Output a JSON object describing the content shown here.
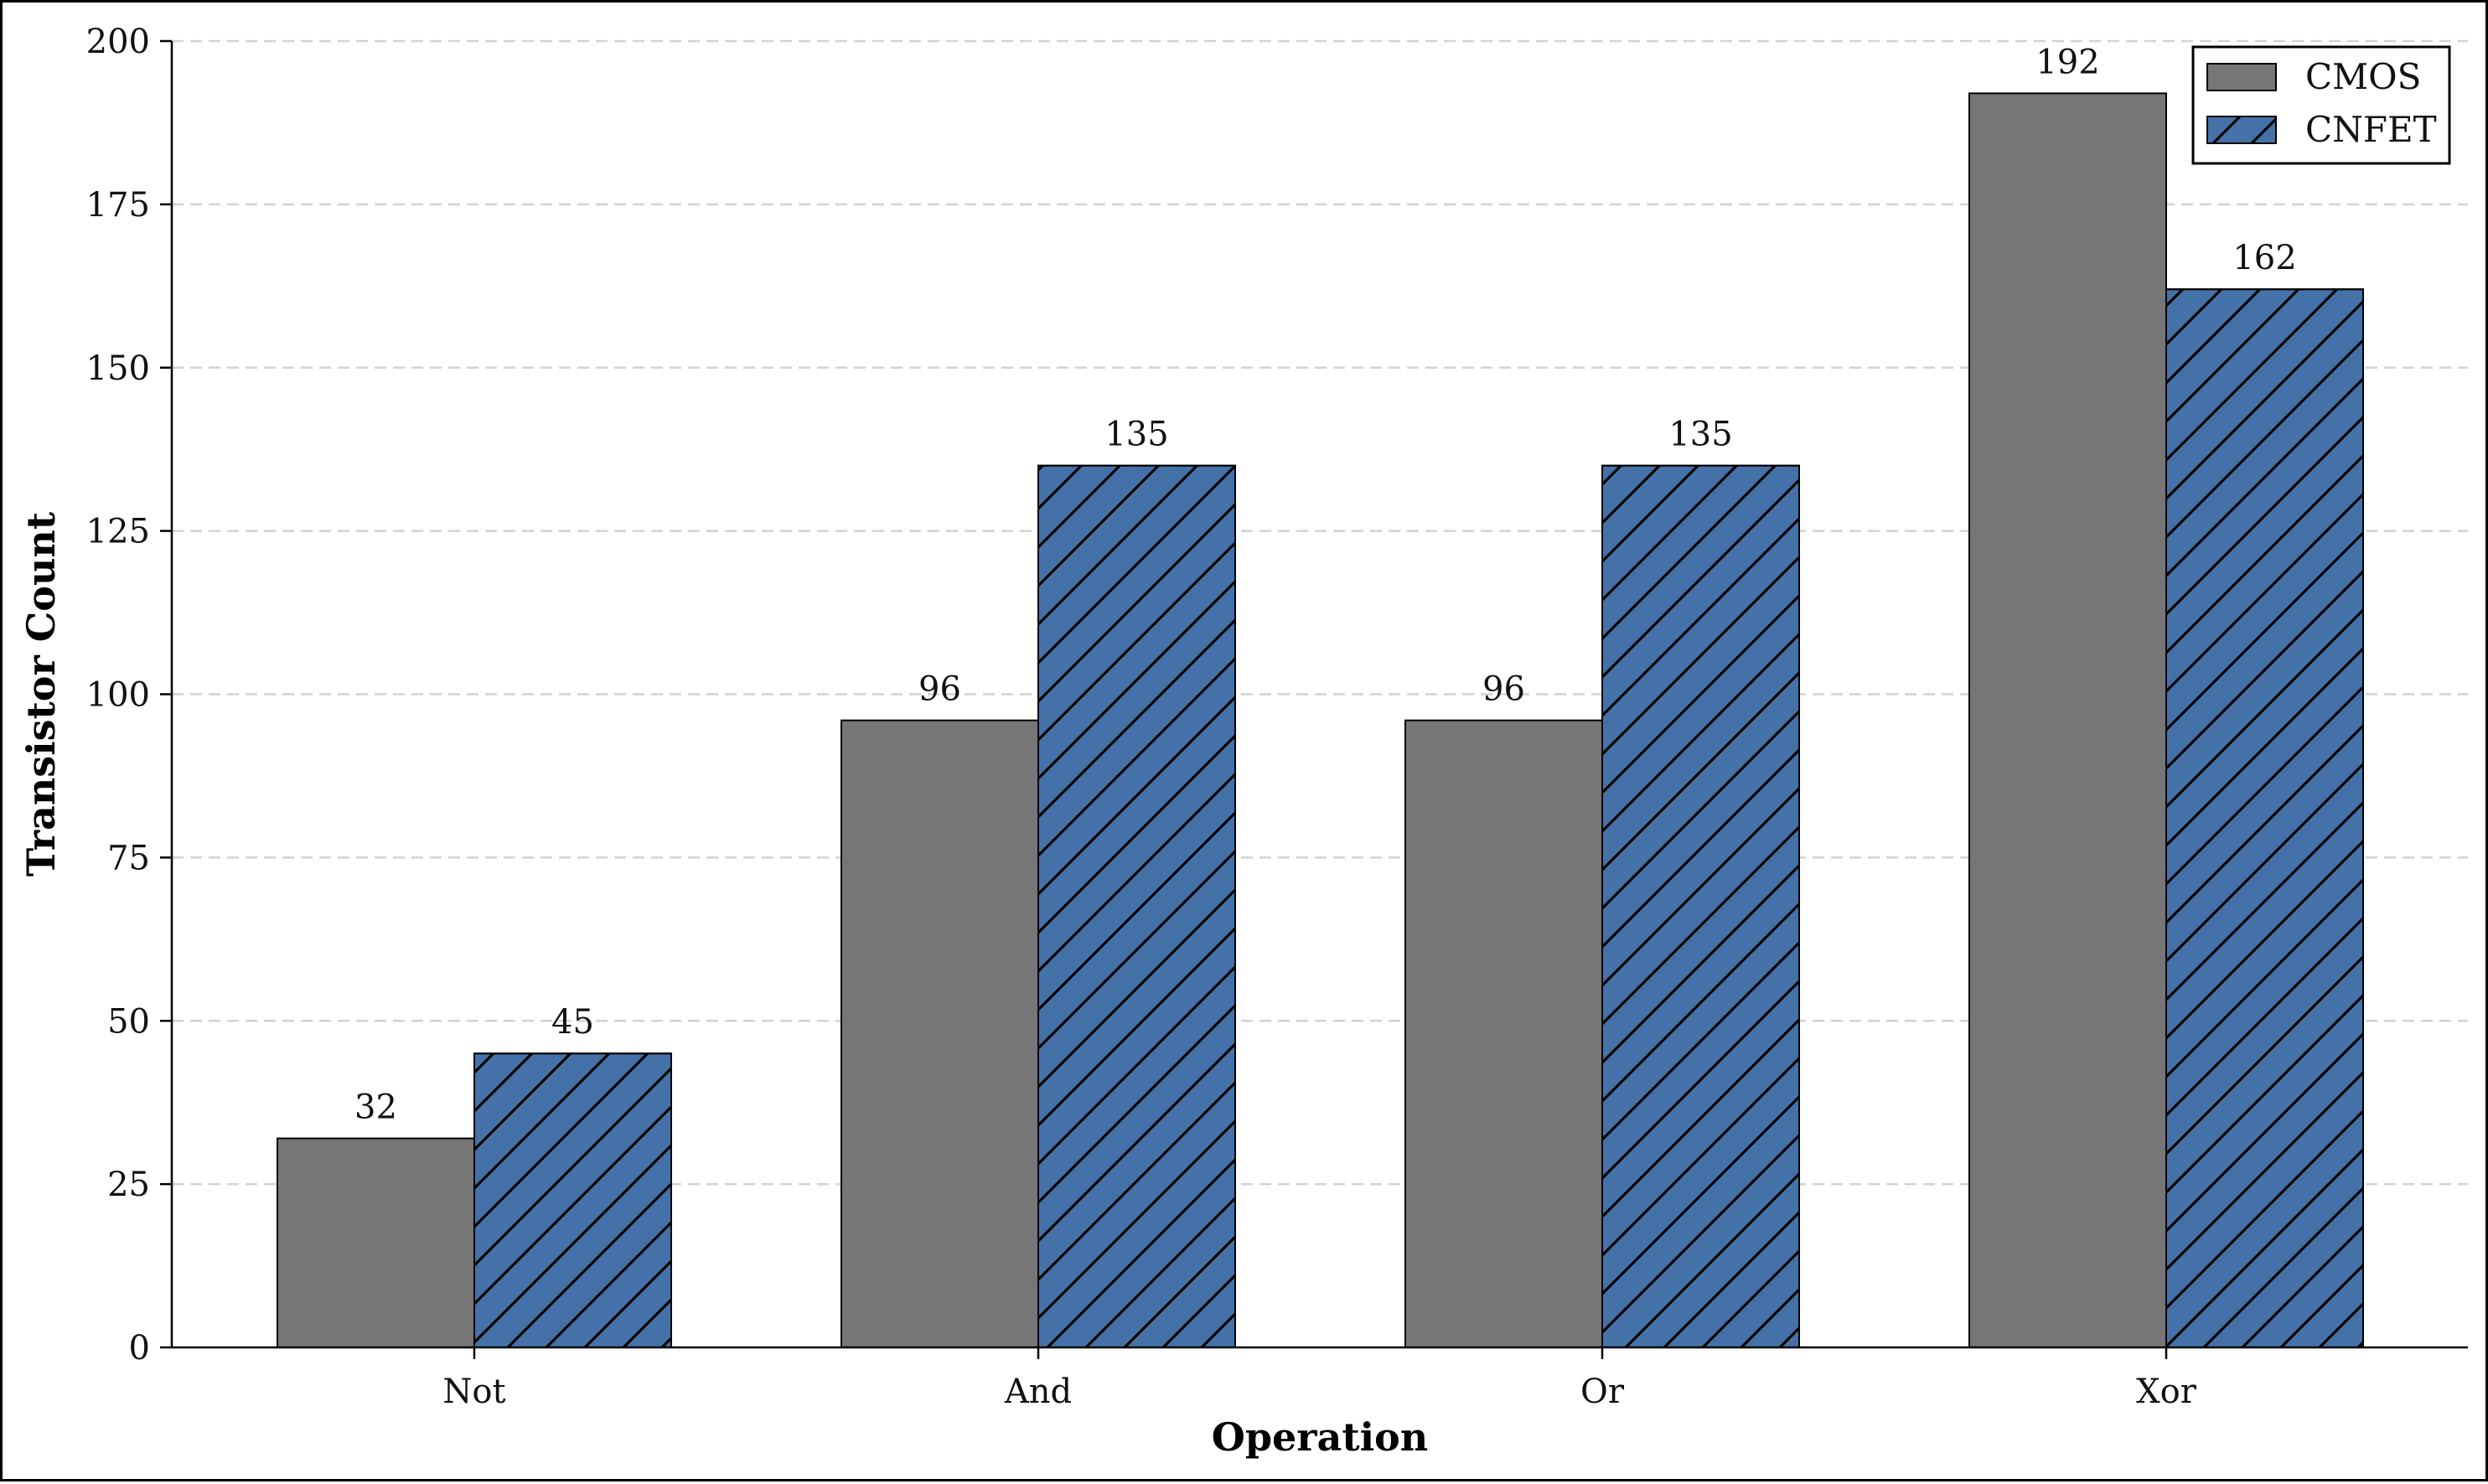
{
  "chart_data": {
    "type": "bar",
    "categories": [
      "Not",
      "And",
      "Or",
      "Xor"
    ],
    "series": [
      {
        "name": "CMOS",
        "values": [
          32,
          96,
          96,
          192
        ],
        "color": "#767676",
        "hatch": "none"
      },
      {
        "name": "CNFET",
        "values": [
          45,
          135,
          135,
          162
        ],
        "color": "#4472a8",
        "hatch": "diagonal"
      }
    ],
    "title": "",
    "xlabel": "Operation",
    "ylabel": "Transistor Count",
    "ylim": [
      0,
      200
    ],
    "yticks": [
      0,
      25,
      50,
      75,
      100,
      125,
      150,
      175,
      200
    ],
    "grid": "y-dashed",
    "legend_position": "top-right",
    "value_labels": true
  }
}
